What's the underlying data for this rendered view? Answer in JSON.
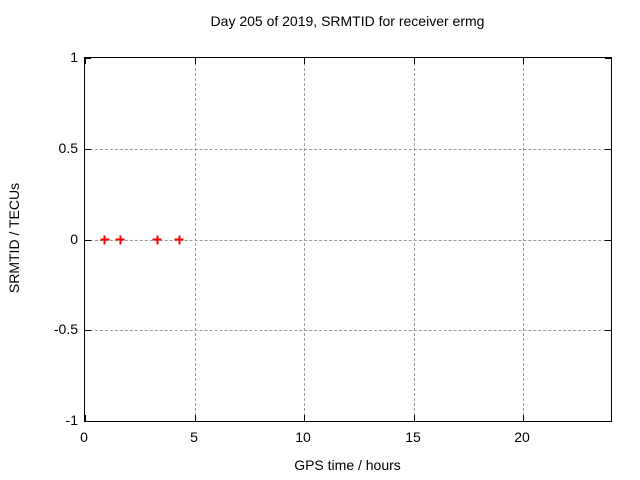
{
  "chart_data": {
    "type": "scatter",
    "title": "Day 205 of 2019, SRMTID for receiver ermg",
    "xlabel": "GPS time / hours",
    "ylabel": "SRMTID / TECUs",
    "xlim": [
      0,
      24
    ],
    "ylim": [
      -1,
      1
    ],
    "x_ticks": {
      "values": [
        0,
        5,
        10,
        15,
        20
      ],
      "labels": [
        "0",
        "5",
        "10",
        "15",
        "20"
      ]
    },
    "y_ticks": {
      "values": [
        1,
        0.5,
        0,
        -0.5,
        -1
      ],
      "labels": [
        "1",
        "0.5",
        "0",
        "-0.5",
        "-1"
      ]
    },
    "grid": true,
    "legend": "none",
    "marker": "plus",
    "marker_color": "#ff0000",
    "grid_color": "#9a9a9a",
    "points": [
      {
        "x": 0.9,
        "y": 0
      },
      {
        "x": 1.6,
        "y": 0
      },
      {
        "x": 3.3,
        "y": 0
      },
      {
        "x": 4.3,
        "y": 0
      }
    ]
  }
}
